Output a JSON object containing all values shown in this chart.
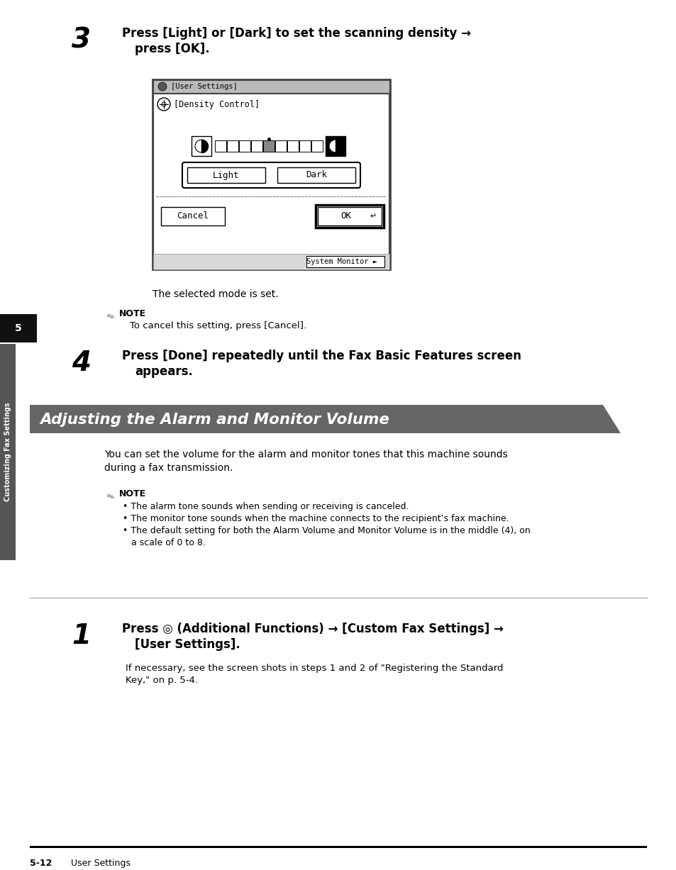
{
  "bg_color": "#ffffff",
  "sidebar_color": "#555555",
  "header_bar_color": "#666666",
  "step3_text_line1": "Press [Light] or [Dark] to set the scanning density →",
  "step3_text_line2": "press [OK].",
  "screen_title": "[User Settings]",
  "screen_density_label": "[Density Control]",
  "screen_light_label": "Light",
  "screen_dark_label": "Dark",
  "screen_cancel_label": "Cancel",
  "screen_ok_label": "OK",
  "screen_system_monitor": "System Monitor",
  "selected_mode_text": "The selected mode is set.",
  "note1_text": "To cancel this setting, press [Cancel].",
  "step4_text_line1": "Press [Done] repeatedly until the Fax Basic Features screen",
  "step4_text_line2": "appears.",
  "section_title": "Adjusting the Alarm and Monitor Volume",
  "section_body_line1": "You can set the volume for the alarm and monitor tones that this machine sounds",
  "section_body_line2": "during a fax transmission.",
  "note2_line1": "• The alarm tone sounds when sending or receiving is canceled.",
  "note2_line2": "• The monitor tone sounds when the machine connects to the recipient’s fax machine.",
  "note2_line3": "• The default setting for both the Alarm Volume and Monitor Volume is in the middle (4), on",
  "note2_line4": "   a scale of 0 to 8.",
  "step1_text_line1": "Press ◎ (Additional Functions) → [Custom Fax Settings] →",
  "step1_text_line2": "[User Settings].",
  "step1_body_line1": "If necessary, see the screen shots in steps 1 and 2 of \"Registering the Standard",
  "step1_body_line2": "Key,\" on p. 5-4.",
  "footer_page": "5-12",
  "footer_text": "User Settings",
  "sidebar_text": "Customizing Fax Settings",
  "page_number_text": "5"
}
